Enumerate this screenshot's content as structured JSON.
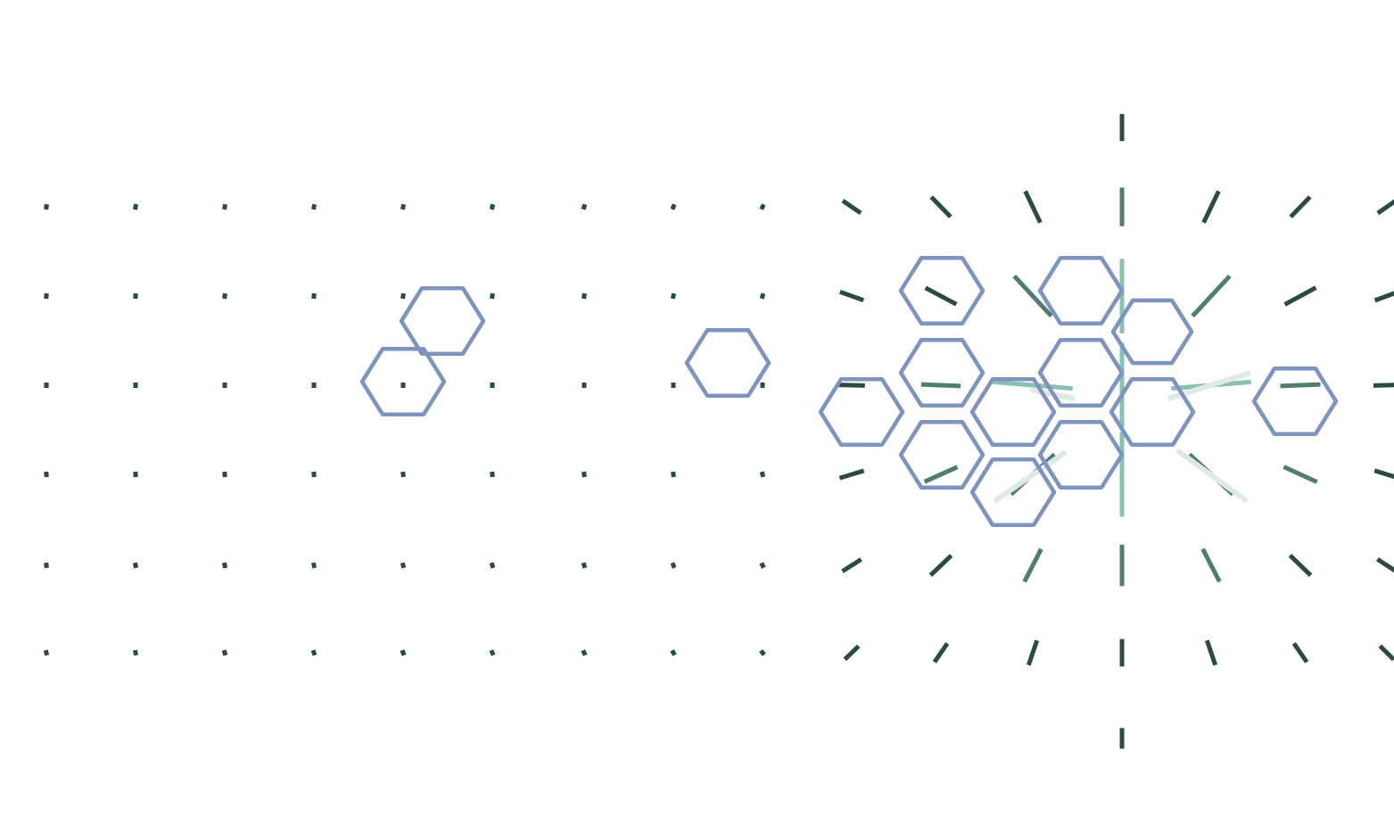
{
  "diagram": {
    "kind": "vector-field-with-hexagon-cells",
    "colors": {
      "background": "#ffffff",
      "hexagon_stroke": "#7f93bf",
      "arrow_dark": "#2c4a44",
      "arrow_mid": "#4f7d72",
      "arrow_light": "#86c2b1",
      "arrow_faint": "#dfe9e6"
    }
  }
}
